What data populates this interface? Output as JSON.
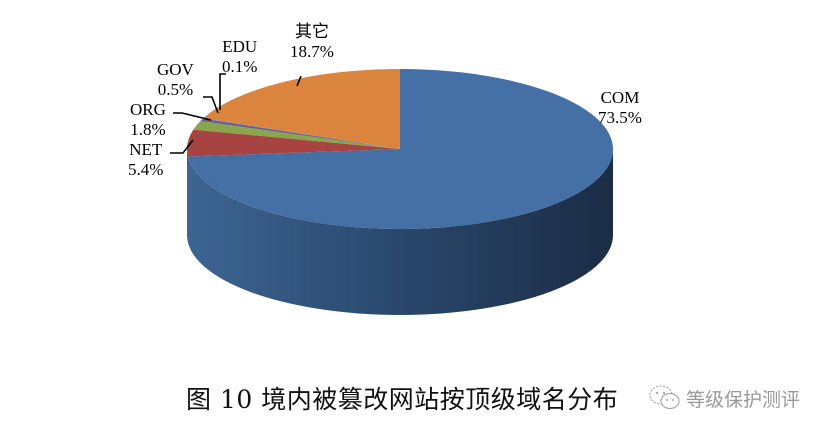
{
  "chart_data": {
    "type": "pie",
    "style": "3d",
    "title": "图 10 境内被篡改网站按顶级域名分布",
    "categories": [
      "COM",
      "NET",
      "ORG",
      "GOV",
      "EDU",
      "其它"
    ],
    "values": [
      73.5,
      5.4,
      1.8,
      0.5,
      0.1,
      18.7
    ],
    "unit": "%",
    "labels": [
      {
        "name": "COM",
        "value": "73.5%"
      },
      {
        "name": "NET",
        "value": "5.4%"
      },
      {
        "name": "ORG",
        "value": "1.8%"
      },
      {
        "name": "GOV",
        "value": "0.5%"
      },
      {
        "name": "EDU",
        "value": "0.1%"
      },
      {
        "name": "其它",
        "value": "18.7%"
      }
    ],
    "colors": [
      "#4470a5",
      "#a74442",
      "#89a54e",
      "#71588f",
      "#4198af",
      "#db843d"
    ],
    "start_angle_deg": 0,
    "direction": "clockwise",
    "legend": "none"
  },
  "caption": {
    "text": "图 10  境内被篡改网站按顶级域名分布"
  },
  "watermark": {
    "icon": "wechat-icon",
    "text": "等级保护测评"
  }
}
